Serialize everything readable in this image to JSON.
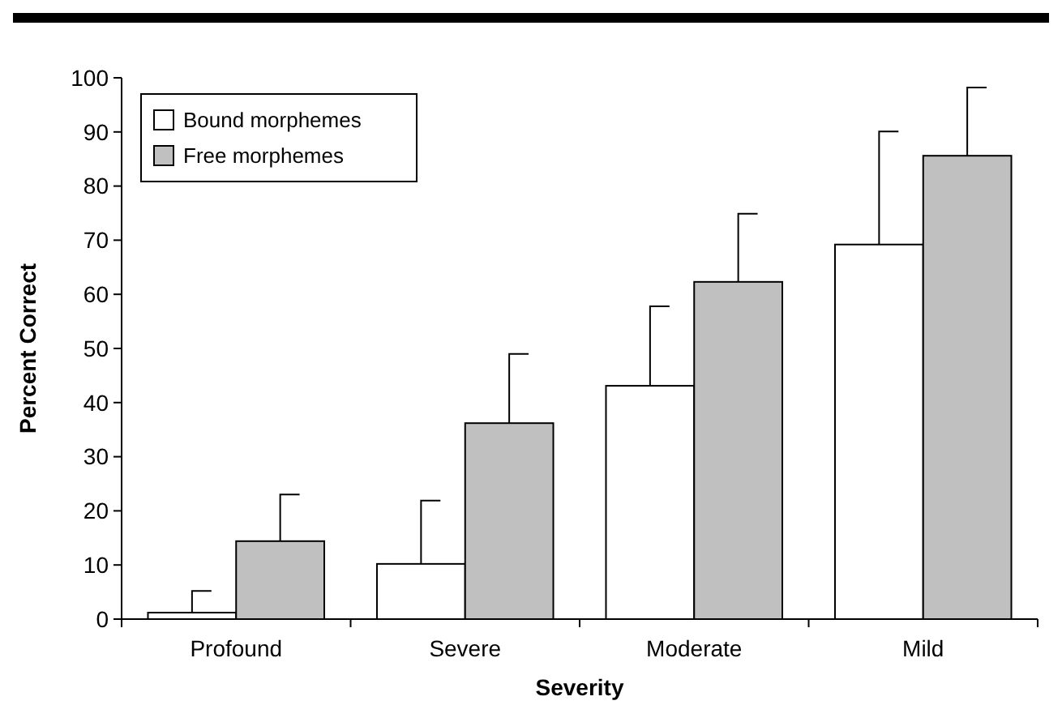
{
  "chart_data": {
    "type": "bar",
    "xlabel": "Severity",
    "ylabel": "Percent Correct",
    "categories": [
      "Profound",
      "Severe",
      "Moderate",
      "Mild"
    ],
    "series": [
      {
        "name": "Bound morphemes",
        "color": "#ffffff",
        "values": [
          1.2,
          10.2,
          43.1,
          69.2
        ],
        "errors": [
          [
            1.2,
            5.2
          ],
          [
            10.2,
            21.9
          ],
          [
            43.1,
            57.8
          ],
          [
            69.2,
            90.1
          ]
        ]
      },
      {
        "name": "Free morphemes",
        "color": "#c0c0c0",
        "values": [
          14.4,
          36.2,
          62.3,
          85.6
        ],
        "errors": [
          [
            14.4,
            23
          ],
          [
            36.2,
            49
          ],
          [
            62.3,
            74.9
          ],
          [
            85.6,
            98.2
          ]
        ]
      }
    ],
    "ylim": [
      0,
      100
    ],
    "yticks": [
      0,
      10,
      20,
      30,
      40,
      50,
      60,
      70,
      80,
      90,
      100
    ],
    "legend": "top left",
    "grid": false
  }
}
